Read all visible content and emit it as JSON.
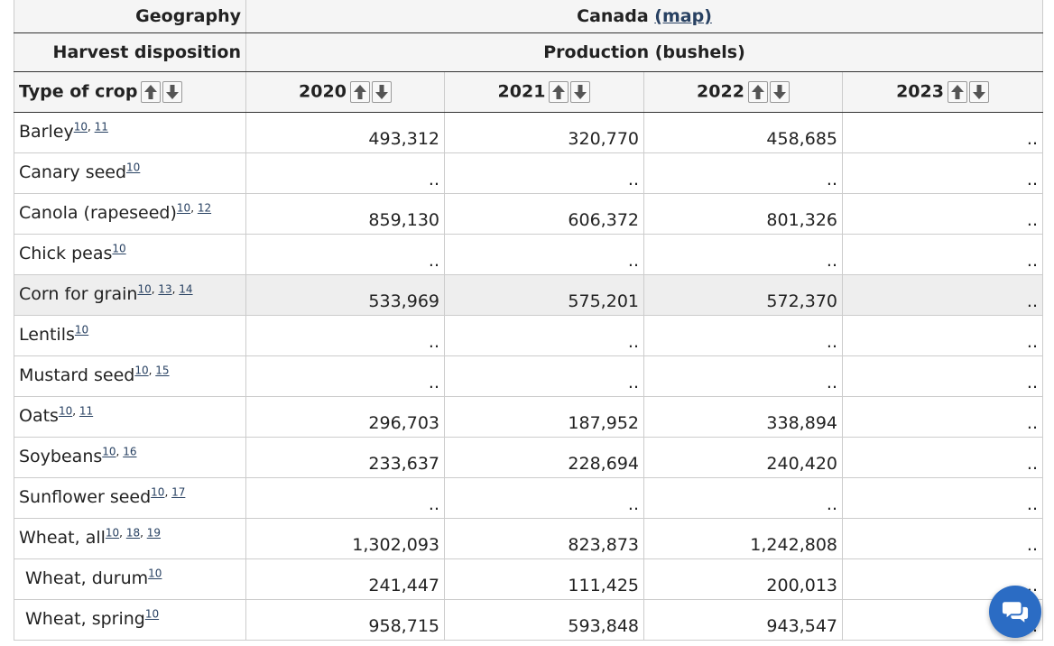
{
  "header": {
    "geography_label": "Geography",
    "geography_value": "Canada",
    "map_link": "(map)",
    "disposition_label": "Harvest disposition",
    "disposition_value": "Production (bushels)",
    "crop_label": "Type of crop",
    "years": [
      "2020",
      "2021",
      "2022",
      "2023"
    ]
  },
  "rows": [
    {
      "crop": "Barley",
      "notes": [
        "10",
        "11"
      ],
      "values": [
        "493,312",
        "320,770",
        "458,685",
        ".."
      ],
      "sub": false
    },
    {
      "crop": "Canary seed",
      "notes": [
        "10"
      ],
      "values": [
        "..",
        "..",
        "..",
        ".."
      ],
      "sub": false
    },
    {
      "crop": "Canola (rapeseed)",
      "notes": [
        "10",
        "12"
      ],
      "values": [
        "859,130",
        "606,372",
        "801,326",
        ".."
      ],
      "sub": false
    },
    {
      "crop": "Chick peas",
      "notes": [
        "10"
      ],
      "values": [
        "..",
        "..",
        "..",
        ".."
      ],
      "sub": false
    },
    {
      "crop": "Corn for grain",
      "notes": [
        "10",
        "13",
        "14"
      ],
      "values": [
        "533,969",
        "575,201",
        "572,370",
        ".."
      ],
      "sub": false,
      "highlight": true
    },
    {
      "crop": "Lentils",
      "notes": [
        "10"
      ],
      "values": [
        "..",
        "..",
        "..",
        ".."
      ],
      "sub": false
    },
    {
      "crop": "Mustard seed",
      "notes": [
        "10",
        "15"
      ],
      "values": [
        "..",
        "..",
        "..",
        ".."
      ],
      "sub": false
    },
    {
      "crop": "Oats",
      "notes": [
        "10",
        "11"
      ],
      "values": [
        "296,703",
        "187,952",
        "338,894",
        ".."
      ],
      "sub": false
    },
    {
      "crop": "Soybeans",
      "notes": [
        "10",
        "16"
      ],
      "values": [
        "233,637",
        "228,694",
        "240,420",
        ".."
      ],
      "sub": false
    },
    {
      "crop": "Sunflower seed",
      "notes": [
        "10",
        "17"
      ],
      "values": [
        "..",
        "..",
        "..",
        ".."
      ],
      "sub": false
    },
    {
      "crop": "Wheat, all",
      "notes": [
        "10",
        "18",
        "19"
      ],
      "values": [
        "1,302,093",
        "823,873",
        "1,242,808",
        ".."
      ],
      "sub": false
    },
    {
      "crop": "Wheat, durum",
      "notes": [
        "10"
      ],
      "values": [
        "241,447",
        "111,425",
        "200,013",
        ".."
      ],
      "sub": true
    },
    {
      "crop": "Wheat, spring",
      "notes": [
        "10"
      ],
      "values": [
        "958,715",
        "593,848",
        "943,547",
        ".."
      ],
      "sub": true
    }
  ],
  "icons": {
    "sort_up": "arrow-up-icon",
    "sort_down": "arrow-down-icon",
    "chat": "chat-bubbles-icon"
  },
  "colors": {
    "link": "#284162",
    "chat_button": "#2b6cc4",
    "sort_arrow": "#555555"
  }
}
